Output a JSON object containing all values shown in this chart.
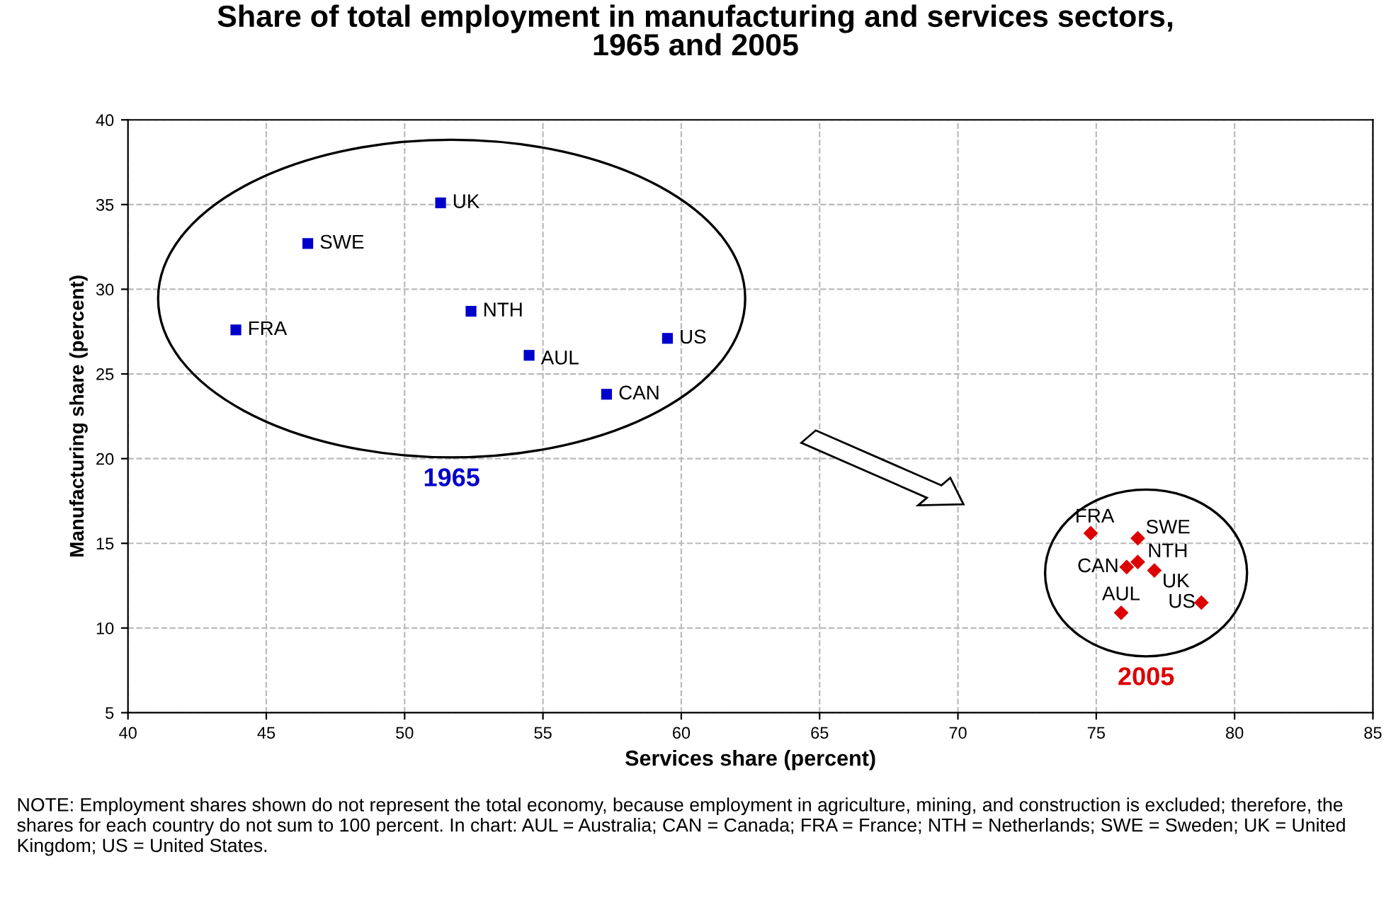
{
  "chart_data": {
    "type": "scatter",
    "title": "Share of total employment in manufacturing and services sectors,\n1965 and 2005",
    "xlabel": "Services share (percent)",
    "ylabel": "Manufacturing share (percent)",
    "xlim": [
      40,
      85
    ],
    "xticks": [
      40,
      45,
      50,
      55,
      60,
      65,
      70,
      75,
      80,
      85
    ],
    "ylim": [
      5,
      40
    ],
    "yticks": [
      5,
      10,
      15,
      20,
      25,
      30,
      35,
      40
    ],
    "grid": true,
    "line_style": "dashed",
    "series": [
      {
        "name": "1965",
        "color": "#0000cc",
        "marker": "square",
        "x": [
          51.3,
          46.5,
          43.9,
          52.4,
          54.5,
          59.5,
          57.3
        ],
        "values": [
          35.1,
          32.7,
          27.6,
          28.7,
          26.1,
          27.1,
          23.8
        ]
      },
      {
        "name": "2005",
        "color": "#dd0000",
        "marker": "diamond",
        "x": [
          74.8,
          76.5,
          76.1,
          76.5,
          77.1,
          78.8,
          75.9
        ],
        "values": [
          15.6,
          15.3,
          13.6,
          13.9,
          13.4,
          11.5,
          10.9
        ]
      }
    ],
    "annotations": [
      {
        "text": "UK",
        "x": 51.3,
        "y": 35.1
      },
      {
        "text": "SWE",
        "x": 46.5,
        "y": 32.7
      },
      {
        "text": "FRA",
        "x": 43.9,
        "y": 27.6
      },
      {
        "text": "NTH",
        "x": 52.4,
        "y": 28.7
      },
      {
        "text": "AUL",
        "x": 54.5,
        "y": 26.1
      },
      {
        "text": "US",
        "x": 59.5,
        "y": 27.1
      },
      {
        "text": "CAN",
        "x": 57.3,
        "y": 23.8
      },
      {
        "text": "FRA",
        "x": 74.8,
        "y": 15.6
      },
      {
        "text": "SWE",
        "x": 76.5,
        "y": 15.3
      },
      {
        "text": "CAN",
        "x": 76.1,
        "y": 13.6
      },
      {
        "text": "NTH",
        "x": 76.5,
        "y": 13.9
      },
      {
        "text": "UK",
        "x": 77.1,
        "y": 13.4
      },
      {
        "text": "US",
        "x": 78.8,
        "y": 11.5
      },
      {
        "text": "AUL",
        "x": 75.9,
        "y": 10.9
      },
      "NOTE: Employment shares shown do not represent the total economy, because employment in agriculture, mining, and construction is excluded; therefore, the shares for each country do not sum to 100 percent. In chart: AUL = Australia; CAN = Canada; FRA = France; NTH = Netherlands; SWE = Sweden; UK = United Kingdom; US = United States."
    ]
  }
}
